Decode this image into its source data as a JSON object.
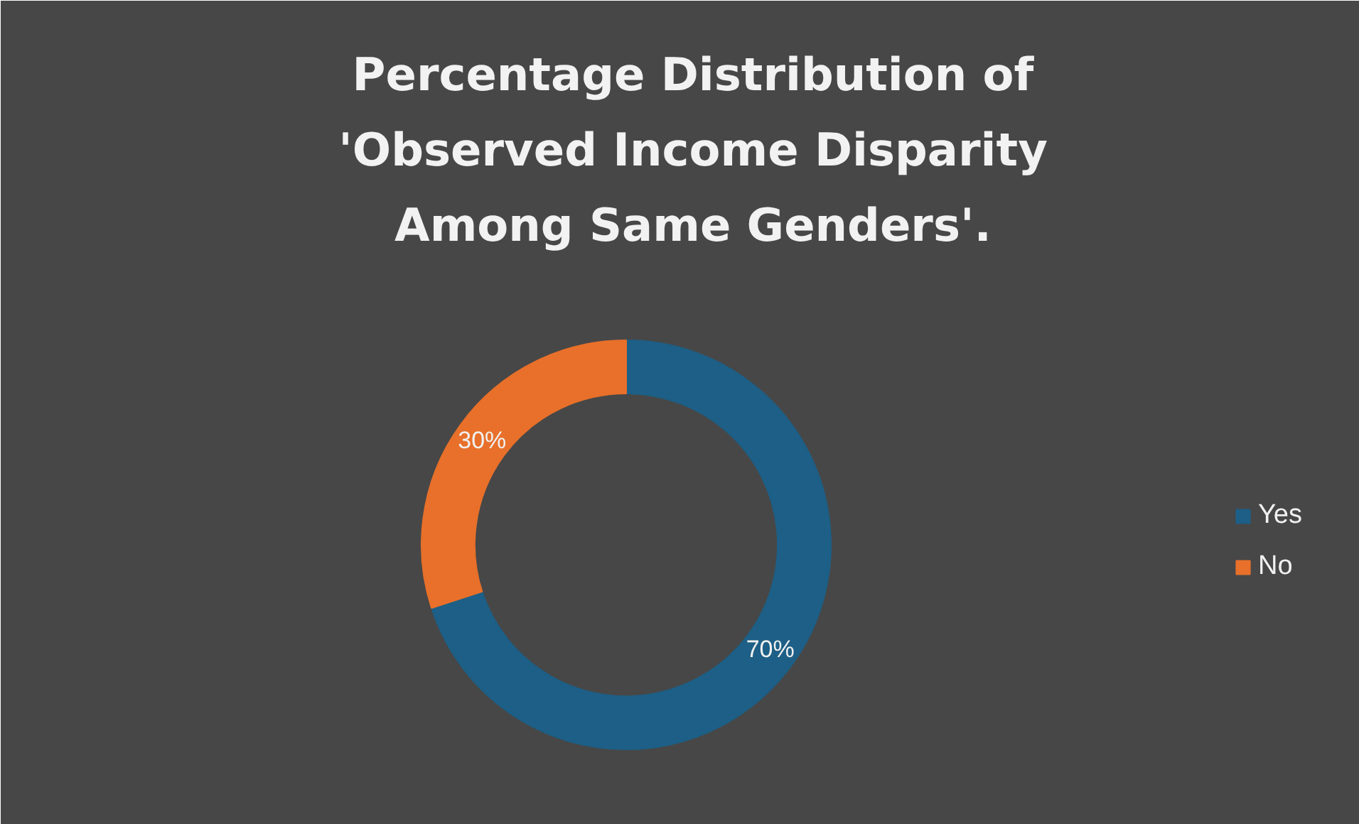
{
  "chart_data": {
    "type": "donut",
    "title": "Percentage Distribution of 'Observed Income Disparity Among Same Genders'.",
    "categories": [
      "Yes",
      "No"
    ],
    "values": [
      70,
      30
    ],
    "colors": [
      "#1d5f86",
      "#e8702a"
    ],
    "value_labels": [
      "70%",
      "30%"
    ],
    "legend": "right"
  }
}
